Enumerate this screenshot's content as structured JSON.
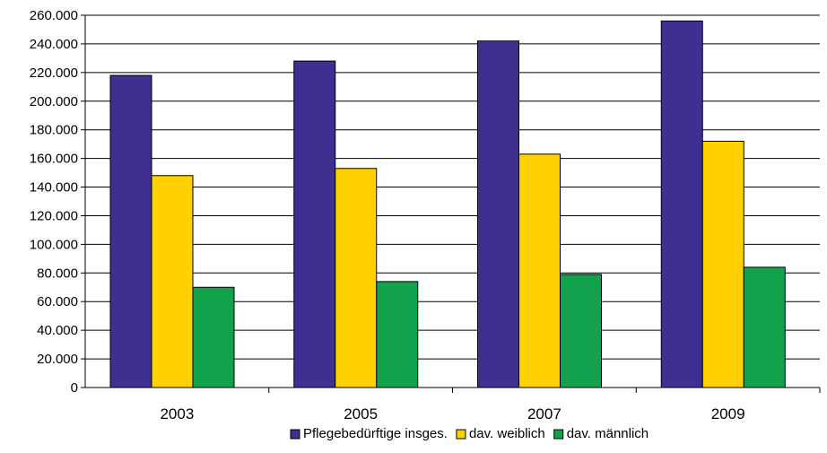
{
  "chart_data": {
    "type": "bar",
    "title": "",
    "xlabel": "",
    "ylabel": "",
    "categories": [
      "2003",
      "2005",
      "2007",
      "2009"
    ],
    "series": [
      {
        "name": "Pflegebedürftige insges.",
        "values": [
          218000,
          228000,
          242000,
          256000
        ],
        "color": "#3d3091"
      },
      {
        "name": "dav. weiblich",
        "values": [
          148000,
          153000,
          163000,
          172000
        ],
        "color": "#ffd100"
      },
      {
        "name": "dav. männlich",
        "values": [
          70000,
          74000,
          79000,
          84000
        ],
        "color": "#12a24c"
      }
    ],
    "ylim": [
      0,
      260000
    ],
    "y_ticks": [
      "0",
      "20.000",
      "40.000",
      "60.000",
      "80.000",
      "100.000",
      "120.000",
      "140.000",
      "160.000",
      "180.000",
      "200.000",
      "220.000",
      "240.000",
      "260.000"
    ],
    "grid": true,
    "legend_position": "bottom"
  }
}
